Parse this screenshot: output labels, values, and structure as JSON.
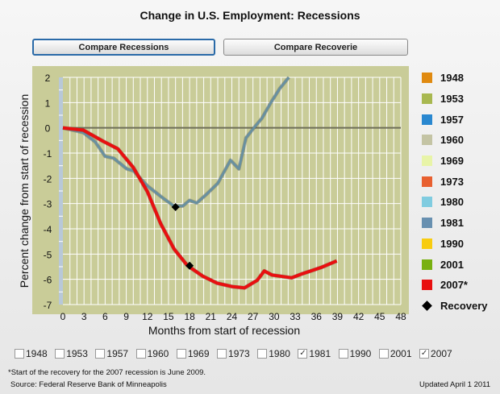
{
  "title": "Change in U.S. Employment: Recessions",
  "buttons": {
    "compare_recessions": "Compare Recessions",
    "compare_recoveries": "Compare Recoverie"
  },
  "legend": [
    {
      "label": "1948",
      "color": "#e08a10"
    },
    {
      "label": "1953",
      "color": "#a8b850"
    },
    {
      "label": "1957",
      "color": "#2a88d0"
    },
    {
      "label": "1960",
      "color": "#c4c4a4"
    },
    {
      "label": "1969",
      "color": "#e8f4a8"
    },
    {
      "label": "1973",
      "color": "#e86030"
    },
    {
      "label": "1980",
      "color": "#80cce0"
    },
    {
      "label": "1981",
      "color": "#6890b0"
    },
    {
      "label": "1990",
      "color": "#f8cc10"
    },
    {
      "label": "2001",
      "color": "#78b010"
    },
    {
      "label": "2007*",
      "color": "#e81010"
    }
  ],
  "legend_recovery": "Recovery",
  "checkboxes": [
    {
      "label": "1948",
      "checked": false
    },
    {
      "label": "1953",
      "checked": false
    },
    {
      "label": "1957",
      "checked": false
    },
    {
      "label": "1960",
      "checked": false
    },
    {
      "label": "1969",
      "checked": false
    },
    {
      "label": "1973",
      "checked": false
    },
    {
      "label": "1980",
      "checked": false
    },
    {
      "label": "1981",
      "checked": true
    },
    {
      "label": "1990",
      "checked": false
    },
    {
      "label": "2001",
      "checked": false
    },
    {
      "label": "2007",
      "checked": true
    }
  ],
  "footnote": "*Start of the recovery for the 2007 recession is June 2009.",
  "source": "Source: Federal Reserve Bank of Minneapolis",
  "updated": "Updated April 1 2011",
  "chart_data": {
    "type": "line",
    "xlabel": "Months from start of recession",
    "ylabel": "Percent change from start of recession",
    "xlim": [
      0,
      48
    ],
    "ylim": [
      -7,
      2
    ],
    "xticks": [
      0,
      3,
      6,
      9,
      12,
      15,
      18,
      21,
      24,
      27,
      30,
      33,
      36,
      39,
      42,
      45,
      48
    ],
    "yticks": [
      2,
      1,
      0,
      -1,
      -2,
      -3,
      -4,
      -5,
      -6,
      -7
    ],
    "grid": true,
    "legend_position": "right",
    "series": [
      {
        "name": "1981",
        "color": "#6890a0",
        "points": [
          [
            0,
            0
          ],
          [
            2.9,
            -0.19
          ],
          [
            4.6,
            -0.56
          ],
          [
            6,
            -1.13
          ],
          [
            7.2,
            -1.2
          ],
          [
            9.1,
            -1.63
          ],
          [
            10,
            -1.7
          ],
          [
            12,
            -2.3
          ],
          [
            14.3,
            -2.8
          ],
          [
            15.8,
            -3.1
          ],
          [
            17,
            -3.1
          ],
          [
            18,
            -2.87
          ],
          [
            19,
            -2.98
          ],
          [
            20.4,
            -2.63
          ],
          [
            22,
            -2.2
          ],
          [
            23.8,
            -1.28
          ],
          [
            25,
            -1.63
          ],
          [
            26,
            -0.4
          ],
          [
            27.2,
            0.02
          ],
          [
            28.3,
            0.39
          ],
          [
            29.5,
            0.98
          ],
          [
            30.8,
            1.56
          ],
          [
            32.1,
            2.0
          ]
        ],
        "recovery": [
          16,
          -3.14
        ]
      },
      {
        "name": "2007*",
        "color": "#e81010",
        "points": [
          [
            0,
            0
          ],
          [
            2.9,
            -0.09
          ],
          [
            5.5,
            -0.5
          ],
          [
            7.8,
            -0.83
          ],
          [
            10,
            -1.57
          ],
          [
            12,
            -2.53
          ],
          [
            13.9,
            -3.8
          ],
          [
            15.8,
            -4.8
          ],
          [
            17.7,
            -5.46
          ],
          [
            19.9,
            -5.88
          ],
          [
            21.9,
            -6.15
          ],
          [
            24.1,
            -6.29
          ],
          [
            25.8,
            -6.34
          ],
          [
            27.6,
            -6.04
          ],
          [
            28.6,
            -5.67
          ],
          [
            29.7,
            -5.83
          ],
          [
            32.5,
            -5.94
          ],
          [
            34,
            -5.78
          ],
          [
            36.7,
            -5.53
          ],
          [
            38.9,
            -5.27
          ]
        ],
        "recovery": [
          18,
          -5.46
        ]
      }
    ]
  }
}
